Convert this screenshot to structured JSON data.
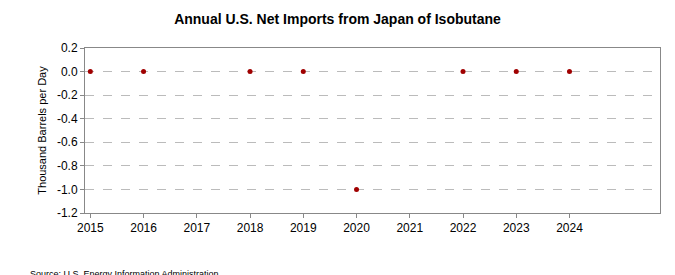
{
  "chart_data": {
    "type": "scatter",
    "title": "Annual U.S. Net Imports from Japan of Isobutane",
    "y_label": "Thousand Barrels per Day",
    "source": "Source: U.S. Energy Information Administration",
    "x": [
      2015,
      2016,
      2018,
      2019,
      2020,
      2022,
      2023,
      2024
    ],
    "values": [
      0,
      0,
      0,
      0,
      -1,
      0,
      0,
      0
    ],
    "color": "#a00000",
    "marker": "circle",
    "xlim": [
      2014.9,
      2025.7
    ],
    "xticks": [
      2015,
      2016,
      2017,
      2018,
      2019,
      2020,
      2021,
      2022,
      2023,
      2024
    ],
    "ylim": [
      -1.2,
      0.2
    ],
    "yticks": [
      0.2,
      {
        "value": 0,
        "label": "0.0"
      },
      -0.2,
      -0.4,
      -0.6,
      -0.8,
      {
        "value": -1,
        "label": "-1.0"
      },
      -1.2
    ],
    "grid": true
  }
}
